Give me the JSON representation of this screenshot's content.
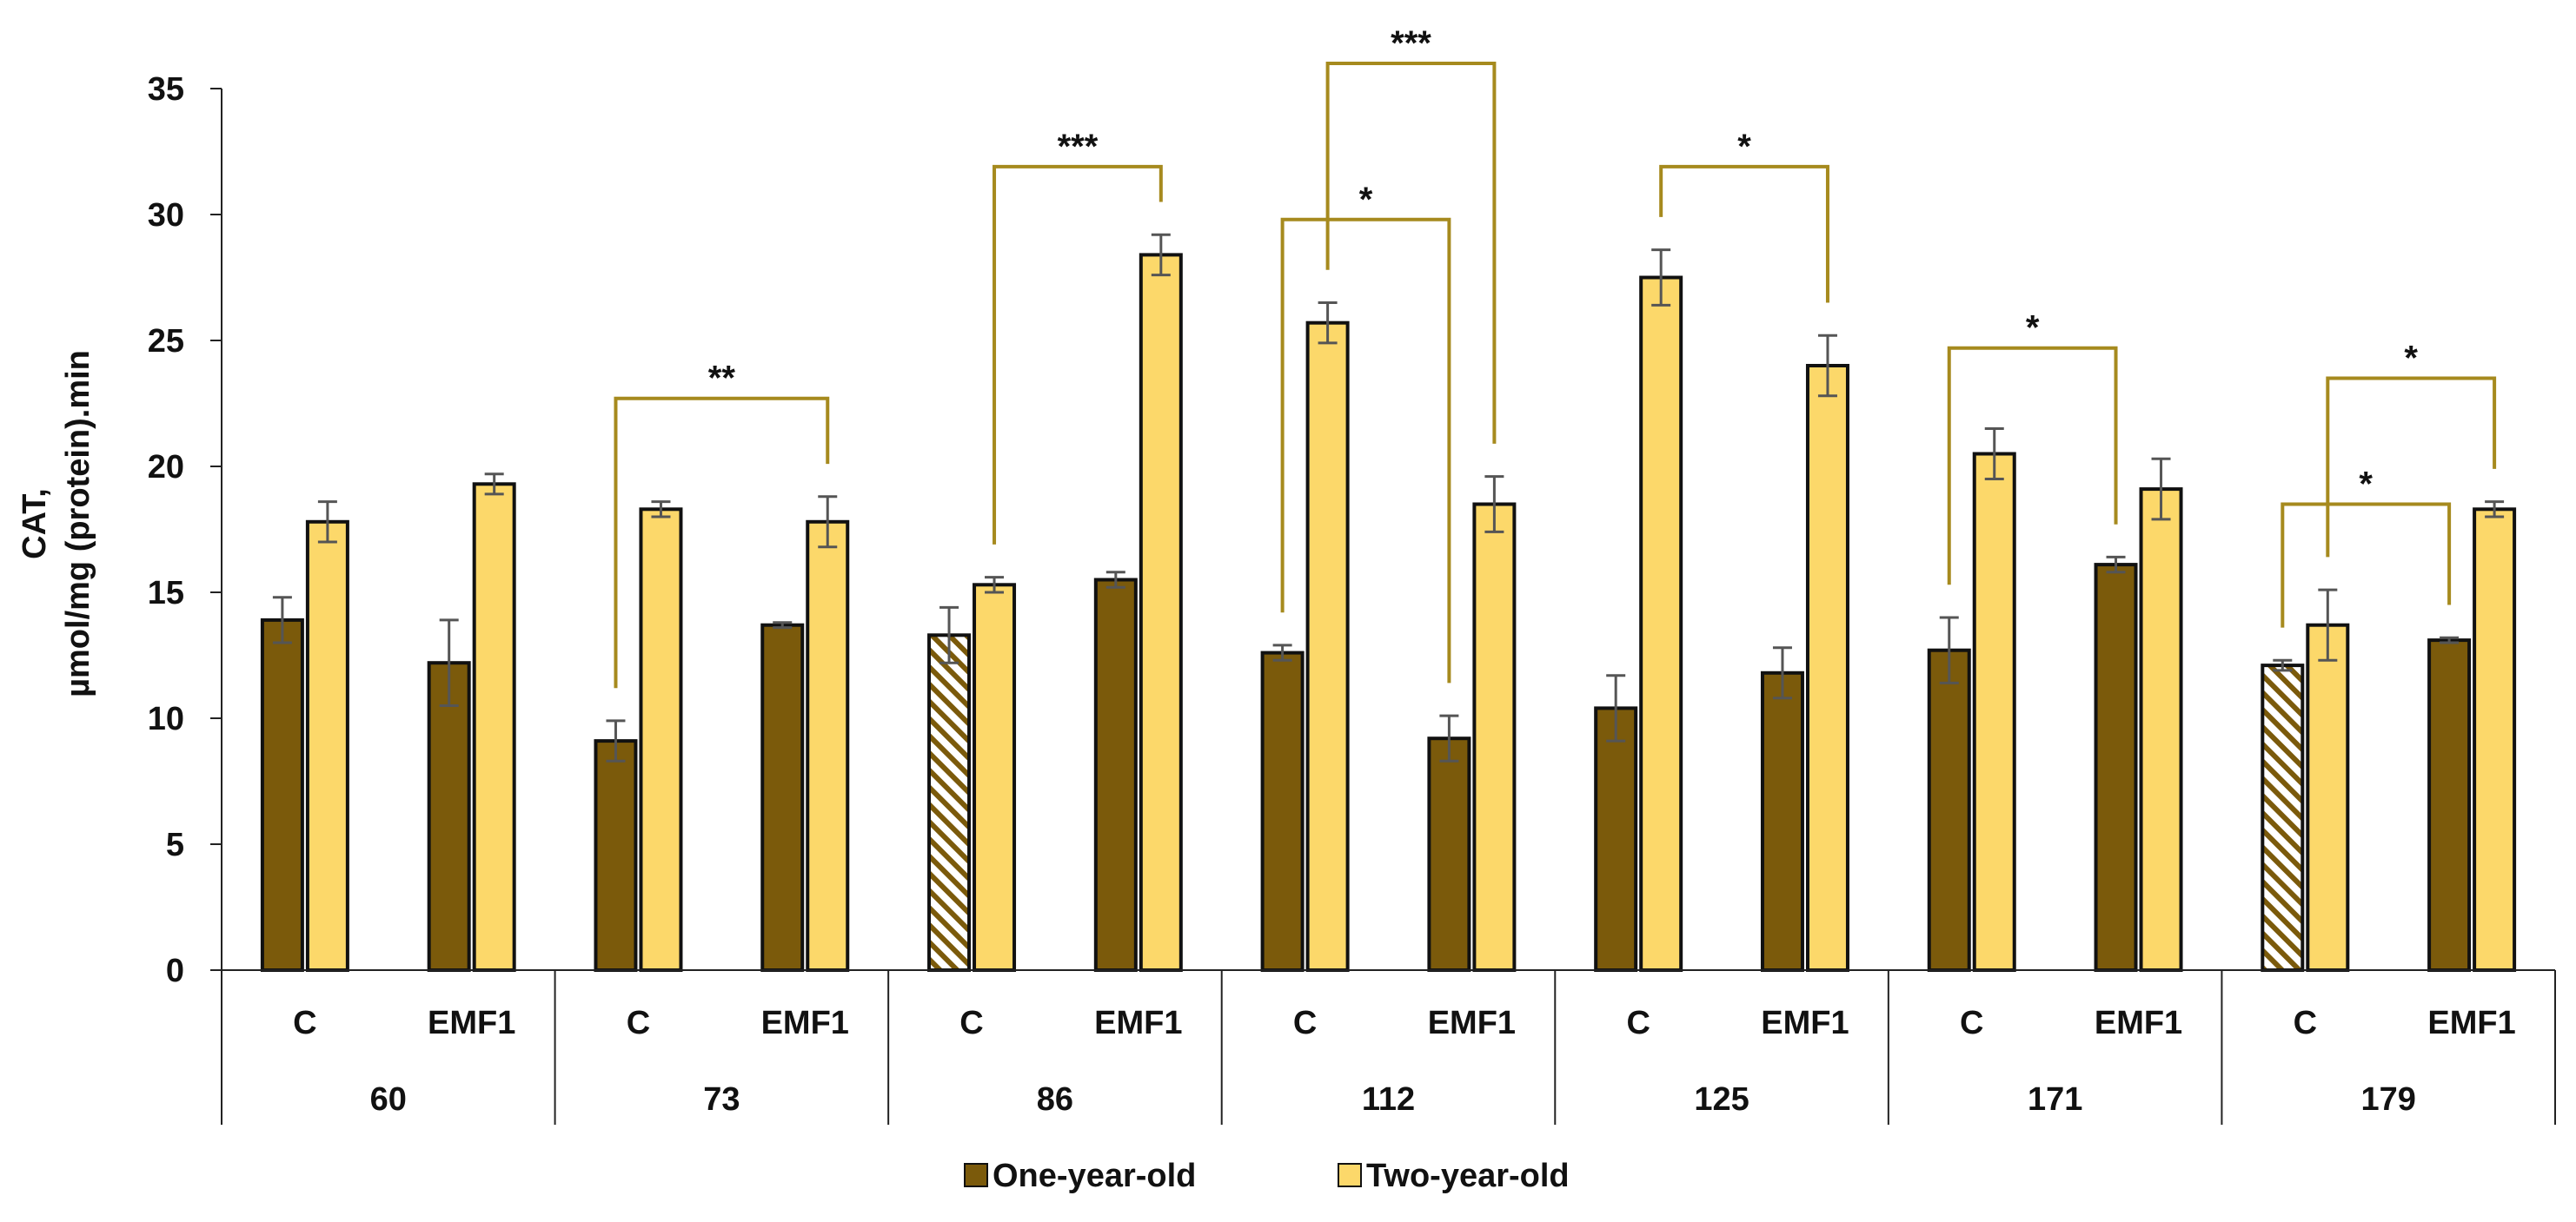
{
  "chart_data": {
    "type": "bar",
    "ylabel_line1": "CAT,",
    "ylabel_line2": "µmol/mg (protein).min",
    "ylim": [
      0,
      35
    ],
    "yticks": [
      "0",
      "5",
      "10",
      "15",
      "20",
      "25",
      "30",
      "35"
    ],
    "grid": false,
    "legend_position": "bottom-center",
    "groups": [
      "60",
      "73",
      "86",
      "112",
      "125",
      "171",
      "179"
    ],
    "subcategories": [
      "C",
      "EMF1"
    ],
    "series": [
      {
        "name": "One-year-old",
        "color": "#7B5A0B",
        "values": [
          [
            13.9,
            12.2
          ],
          [
            9.1,
            13.7
          ],
          [
            13.3,
            15.5
          ],
          [
            12.6,
            9.2
          ],
          [
            10.4,
            11.8
          ],
          [
            12.7,
            16.1
          ],
          [
            12.1,
            13.1
          ]
        ],
        "errors": [
          [
            0.9,
            1.7
          ],
          [
            0.8,
            0.1
          ],
          [
            1.1,
            0.3
          ],
          [
            0.3,
            0.9
          ],
          [
            1.3,
            1.0
          ],
          [
            1.3,
            0.3
          ],
          [
            0.2,
            0.1
          ]
        ],
        "hatched": [
          [
            false,
            false
          ],
          [
            false,
            false
          ],
          [
            true,
            false
          ],
          [
            false,
            false
          ],
          [
            false,
            false
          ],
          [
            false,
            false
          ],
          [
            true,
            false
          ]
        ]
      },
      {
        "name": "Two-year-old",
        "color": "#FCD86A",
        "values": [
          [
            17.8,
            19.3
          ],
          [
            18.3,
            17.8
          ],
          [
            15.3,
            28.4
          ],
          [
            25.7,
            18.5
          ],
          [
            27.5,
            24.0
          ],
          [
            20.5,
            19.1
          ],
          [
            13.7,
            18.3
          ]
        ],
        "errors": [
          [
            0.8,
            0.4
          ],
          [
            0.3,
            1.0
          ],
          [
            0.3,
            0.8
          ],
          [
            0.8,
            1.1
          ],
          [
            1.1,
            1.2
          ],
          [
            1.0,
            1.2
          ],
          [
            1.4,
            0.3
          ]
        ]
      }
    ],
    "significance_color": "#A68A1E",
    "significance": [
      {
        "from": [
          1,
          0,
          0
        ],
        "to": [
          1,
          1,
          1
        ],
        "label": "**",
        "level": 22.7
      },
      {
        "from": [
          2,
          0,
          1
        ],
        "to": [
          2,
          1,
          1
        ],
        "label": "***",
        "level": 31.9
      },
      {
        "from": [
          3,
          0,
          0
        ],
        "to": [
          3,
          1,
          0
        ],
        "label": "*",
        "level": 29.8
      },
      {
        "from": [
          3,
          0,
          1
        ],
        "to": [
          3,
          1,
          1
        ],
        "label": "***",
        "level": 36.0
      },
      {
        "from": [
          4,
          0,
          1
        ],
        "to": [
          4,
          1,
          1
        ],
        "label": "*",
        "level": 31.9
      },
      {
        "from": [
          5,
          0,
          0
        ],
        "to": [
          5,
          1,
          0
        ],
        "label": "*",
        "level": 24.7
      },
      {
        "from": [
          6,
          0,
          0
        ],
        "to": [
          6,
          1,
          0
        ],
        "label": "*",
        "level": 18.5
      },
      {
        "from": [
          6,
          0,
          1
        ],
        "to": [
          6,
          1,
          1
        ],
        "label": "*",
        "level": 23.5
      }
    ]
  }
}
